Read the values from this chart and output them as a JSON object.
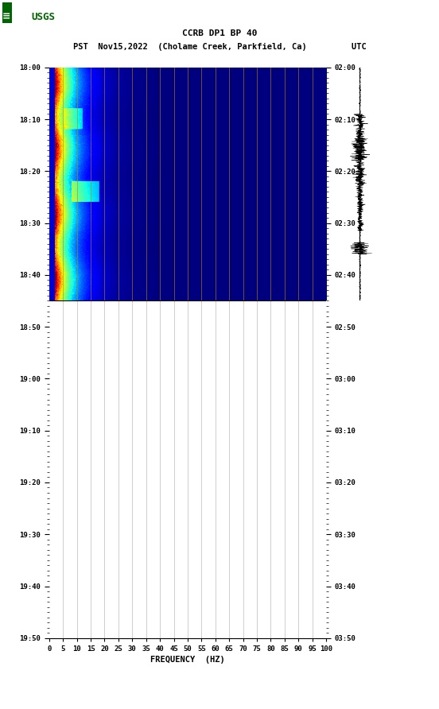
{
  "title_line1": "CCRB DP1 BP 40",
  "title_line2": "PST  Nov15,2022  (Cholame Creek, Parkfield, Ca)         UTC",
  "xlabel": "FREQUENCY  (HZ)",
  "freq_ticks": [
    0,
    5,
    10,
    15,
    20,
    25,
    30,
    35,
    40,
    45,
    50,
    55,
    60,
    65,
    70,
    75,
    80,
    85,
    90,
    95,
    100
  ],
  "time_ticks_left": [
    "18:00",
    "18:10",
    "18:20",
    "18:30",
    "18:40",
    "18:50",
    "19:00",
    "19:10",
    "19:20",
    "19:30",
    "19:40",
    "19:50"
  ],
  "time_ticks_right": [
    "02:00",
    "02:10",
    "02:20",
    "02:30",
    "02:40",
    "02:50",
    "03:00",
    "03:10",
    "03:20",
    "03:30",
    "03:40",
    "03:50"
  ],
  "background_color": "#ffffff",
  "grid_color_spec": "#b8860b",
  "grid_color_empty": "#aaaaaa",
  "logo_color": "#006400",
  "colormap": "jet",
  "vline_freqs": [
    5,
    10,
    15,
    20,
    25,
    30,
    35,
    40,
    45,
    50,
    55,
    60,
    65,
    70,
    75,
    80,
    85,
    90,
    95,
    100
  ],
  "total_minutes": 110,
  "spec_minutes": 45,
  "n_freq": 100,
  "spec_seed": 12345
}
